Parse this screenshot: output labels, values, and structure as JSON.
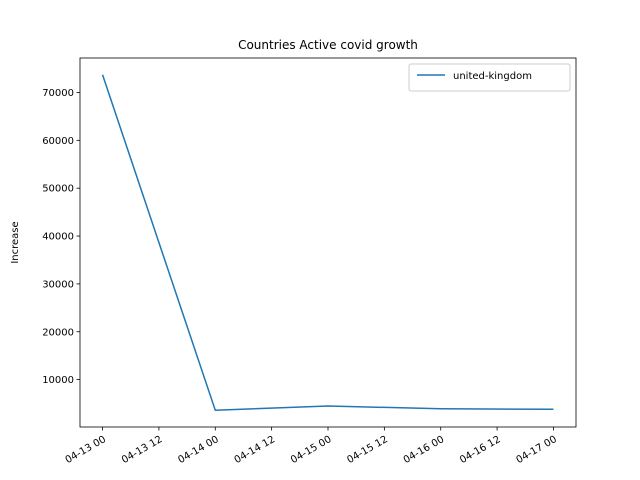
{
  "chart_data": {
    "type": "line",
    "title": "Countries Active covid growth",
    "xlabel": "",
    "ylabel": "Increase",
    "x": [
      "2020-04-13",
      "2020-04-14",
      "2020-04-15",
      "2020-04-16",
      "2020-04-17"
    ],
    "series": [
      {
        "name": "united-kingdom",
        "color": "#1f77b4",
        "values": [
          73700,
          3600,
          4500,
          3900,
          3800
        ]
      }
    ],
    "x_ticks": [
      "04-13 00",
      "04-13 12",
      "04-14 00",
      "04-14 12",
      "04-15 00",
      "04-15 12",
      "04-16 00",
      "04-16 12",
      "04-17 00"
    ],
    "y_ticks": [
      10000,
      20000,
      30000,
      40000,
      50000,
      60000,
      70000
    ],
    "xlim": [
      "2020-04-12 19:12",
      "2020-04-17 04:48"
    ],
    "ylim": [
      100,
      77200
    ],
    "grid": false,
    "legend_position": "upper right"
  }
}
